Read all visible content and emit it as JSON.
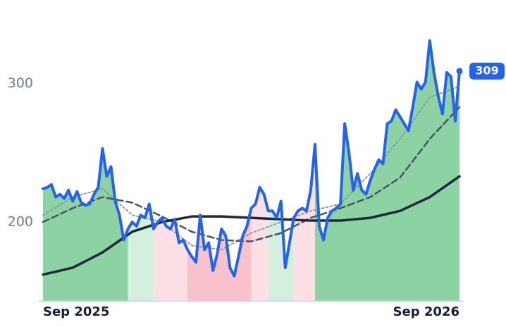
{
  "chart_data": {
    "type": "line",
    "xlim": [
      0,
      98
    ],
    "ylim": [
      143,
      340
    ],
    "yticks": [
      200,
      300
    ],
    "xticks": [
      {
        "value": 0,
        "label": "Sep 2025"
      },
      {
        "value": 98,
        "label": "Sep 2026"
      }
    ],
    "regions": [
      {
        "start": 0,
        "end": 20,
        "color": "#8dd2a2"
      },
      {
        "start": 20,
        "end": 26,
        "color": "#d5efde"
      },
      {
        "start": 26,
        "end": 34,
        "color": "#fde0e6"
      },
      {
        "start": 34,
        "end": 49,
        "color": "#f9c1cc"
      },
      {
        "start": 49,
        "end": 53,
        "color": "#fde0e6"
      },
      {
        "start": 53,
        "end": 59,
        "color": "#d5efde"
      },
      {
        "start": 59,
        "end": 64,
        "color": "#fde0e6"
      },
      {
        "start": 64,
        "end": 98,
        "color": "#8dd2a2"
      }
    ],
    "series": [
      {
        "color": "#2563eb",
        "x": [
          0,
          1,
          2,
          3,
          4,
          5,
          6,
          7,
          8,
          9,
          10,
          11,
          12,
          13,
          14,
          15,
          16,
          17,
          18,
          19,
          20,
          21,
          22,
          23,
          24,
          25,
          26,
          27,
          28,
          29,
          30,
          31,
          32,
          33,
          34,
          35,
          36,
          37,
          38,
          39,
          40,
          41,
          42,
          43,
          44,
          45,
          46,
          47,
          48,
          49,
          50,
          51,
          52,
          53,
          54,
          55,
          56,
          57,
          58,
          59,
          60,
          61,
          62,
          63,
          64,
          65,
          66,
          67,
          68,
          69,
          70,
          71,
          72,
          73,
          74,
          75,
          76,
          77,
          78,
          79,
          80,
          81,
          82,
          83,
          84,
          85,
          86,
          87,
          88,
          89,
          90,
          91,
          92,
          93,
          94,
          95,
          96,
          97,
          98
        ],
        "values": [
          224,
          225,
          227,
          218,
          220,
          217,
          223,
          215,
          222,
          214,
          212,
          213,
          220,
          225,
          253,
          233,
          240,
          215,
          205,
          187,
          195,
          200,
          197,
          205,
          203,
          213,
          195,
          200,
          203,
          197,
          195,
          202,
          185,
          187,
          180,
          175,
          171,
          205,
          180,
          185,
          165,
          177,
          195,
          190,
          167,
          161,
          175,
          190,
          197,
          210,
          213,
          225,
          220,
          208,
          208,
          203,
          215,
          167,
          185,
          203,
          208,
          210,
          208,
          223,
          256,
          197,
          187,
          203,
          208,
          210,
          213,
          271,
          250,
          223,
          235,
          223,
          220,
          230,
          238,
          245,
          242,
          271,
          273,
          281,
          276,
          271,
          266,
          283,
          301,
          296,
          301,
          331,
          308,
          291,
          278,
          308,
          305,
          273,
          309
        ]
      },
      {
        "color": "#1e293b",
        "x": [
          0,
          7,
          14,
          21,
          28,
          35,
          42,
          49,
          56,
          63,
          70,
          77,
          84,
          91,
          98
        ],
        "values": [
          162,
          167,
          178,
          193,
          200,
          204,
          204,
          203,
          202,
          201,
          201,
          203,
          208,
          218,
          233
        ]
      },
      {
        "color": "#475569",
        "x": [
          0,
          7,
          14,
          21,
          28,
          35,
          42,
          49,
          56,
          63,
          70,
          77,
          84,
          91,
          98
        ],
        "values": [
          200,
          210,
          218,
          214,
          204,
          193,
          187,
          186,
          192,
          203,
          210,
          218,
          232,
          260,
          283
        ]
      },
      {
        "color": "#8a94a6",
        "x": [
          0,
          7,
          14,
          21,
          28,
          35,
          42,
          49,
          56,
          63,
          70,
          77,
          84,
          91,
          98
        ],
        "values": [
          205,
          218,
          224,
          205,
          200,
          183,
          180,
          192,
          200,
          208,
          213,
          235,
          260,
          290,
          298
        ]
      }
    ]
  }
}
